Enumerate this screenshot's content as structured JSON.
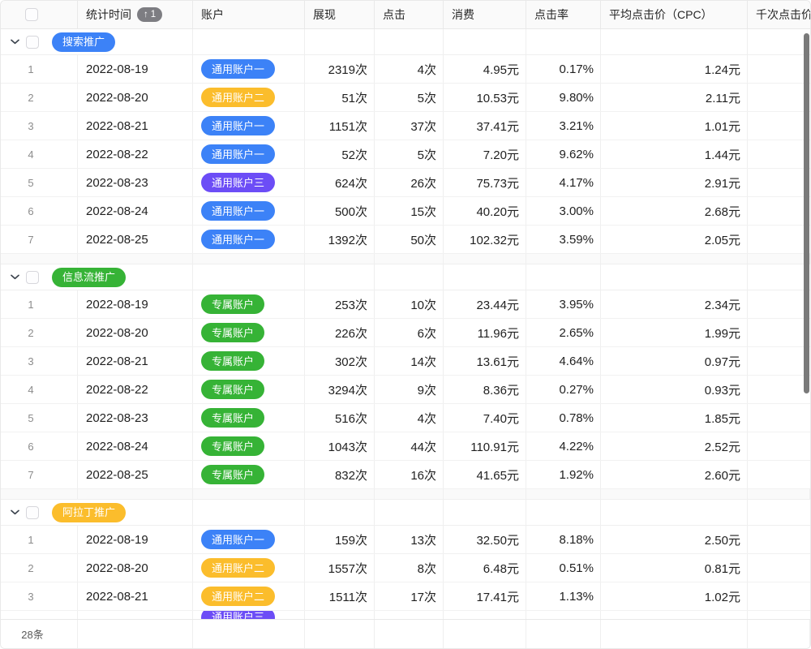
{
  "colors": {
    "blue": "#3C82F7",
    "yellow": "#FBBD2C",
    "green": "#36B336",
    "purple": "#6C4DF6",
    "sort_pill": "#7D7D82",
    "scrollbar": "#7A7A7A"
  },
  "header": {
    "columns": [
      "统计时间",
      "账户",
      "展现",
      "点击",
      "消费",
      "点击率",
      "平均点击价（CPC）",
      "千次点击价"
    ],
    "sort": {
      "arrow": "↑",
      "order": "1",
      "column": "统计时间"
    }
  },
  "groups": [
    {
      "name": "搜索推广",
      "badge_color": "blue",
      "rows": [
        {
          "index": "1",
          "date": "2022-08-19",
          "account": "通用账户一",
          "account_color": "blue",
          "impressions": "2319次",
          "clicks": "4次",
          "cost": "4.95元",
          "ctr": "0.17%",
          "cpc": "1.24元"
        },
        {
          "index": "2",
          "date": "2022-08-20",
          "account": "通用账户二",
          "account_color": "yellow",
          "impressions": "51次",
          "clicks": "5次",
          "cost": "10.53元",
          "ctr": "9.80%",
          "cpc": "2.11元"
        },
        {
          "index": "3",
          "date": "2022-08-21",
          "account": "通用账户一",
          "account_color": "blue",
          "impressions": "1151次",
          "clicks": "37次",
          "cost": "37.41元",
          "ctr": "3.21%",
          "cpc": "1.01元"
        },
        {
          "index": "4",
          "date": "2022-08-22",
          "account": "通用账户一",
          "account_color": "blue",
          "impressions": "52次",
          "clicks": "5次",
          "cost": "7.20元",
          "ctr": "9.62%",
          "cpc": "1.44元"
        },
        {
          "index": "5",
          "date": "2022-08-23",
          "account": "通用账户三",
          "account_color": "purple",
          "impressions": "624次",
          "clicks": "26次",
          "cost": "75.73元",
          "ctr": "4.17%",
          "cpc": "2.91元"
        },
        {
          "index": "6",
          "date": "2022-08-24",
          "account": "通用账户一",
          "account_color": "blue",
          "impressions": "500次",
          "clicks": "15次",
          "cost": "40.20元",
          "ctr": "3.00%",
          "cpc": "2.68元"
        },
        {
          "index": "7",
          "date": "2022-08-25",
          "account": "通用账户一",
          "account_color": "blue",
          "impressions": "1392次",
          "clicks": "50次",
          "cost": "102.32元",
          "ctr": "3.59%",
          "cpc": "2.05元"
        }
      ]
    },
    {
      "name": "信息流推广",
      "badge_color": "green",
      "rows": [
        {
          "index": "1",
          "date": "2022-08-19",
          "account": "专属账户",
          "account_color": "green",
          "impressions": "253次",
          "clicks": "10次",
          "cost": "23.44元",
          "ctr": "3.95%",
          "cpc": "2.34元"
        },
        {
          "index": "2",
          "date": "2022-08-20",
          "account": "专属账户",
          "account_color": "green",
          "impressions": "226次",
          "clicks": "6次",
          "cost": "11.96元",
          "ctr": "2.65%",
          "cpc": "1.99元"
        },
        {
          "index": "3",
          "date": "2022-08-21",
          "account": "专属账户",
          "account_color": "green",
          "impressions": "302次",
          "clicks": "14次",
          "cost": "13.61元",
          "ctr": "4.64%",
          "cpc": "0.97元"
        },
        {
          "index": "4",
          "date": "2022-08-22",
          "account": "专属账户",
          "account_color": "green",
          "impressions": "3294次",
          "clicks": "9次",
          "cost": "8.36元",
          "ctr": "0.27%",
          "cpc": "0.93元"
        },
        {
          "index": "5",
          "date": "2022-08-23",
          "account": "专属账户",
          "account_color": "green",
          "impressions": "516次",
          "clicks": "4次",
          "cost": "7.40元",
          "ctr": "0.78%",
          "cpc": "1.85元"
        },
        {
          "index": "6",
          "date": "2022-08-24",
          "account": "专属账户",
          "account_color": "green",
          "impressions": "1043次",
          "clicks": "44次",
          "cost": "110.91元",
          "ctr": "4.22%",
          "cpc": "2.52元"
        },
        {
          "index": "7",
          "date": "2022-08-25",
          "account": "专属账户",
          "account_color": "green",
          "impressions": "832次",
          "clicks": "16次",
          "cost": "41.65元",
          "ctr": "1.92%",
          "cpc": "2.60元"
        }
      ]
    },
    {
      "name": "阿拉丁推广",
      "badge_color": "yellow",
      "rows": [
        {
          "index": "1",
          "date": "2022-08-19",
          "account": "通用账户一",
          "account_color": "blue",
          "impressions": "159次",
          "clicks": "13次",
          "cost": "32.50元",
          "ctr": "8.18%",
          "cpc": "2.50元"
        },
        {
          "index": "2",
          "date": "2022-08-20",
          "account": "通用账户二",
          "account_color": "yellow",
          "impressions": "1557次",
          "clicks": "8次",
          "cost": "6.48元",
          "ctr": "0.51%",
          "cpc": "0.81元"
        },
        {
          "index": "3",
          "date": "2022-08-21",
          "account": "通用账户二",
          "account_color": "yellow",
          "impressions": "1511次",
          "clicks": "17次",
          "cost": "17.41元",
          "ctr": "1.13%",
          "cpc": "1.02元"
        }
      ]
    }
  ],
  "partial_next_row": {
    "account": "通用账户三",
    "account_color": "purple"
  },
  "footer": {
    "total_count": "28条"
  }
}
